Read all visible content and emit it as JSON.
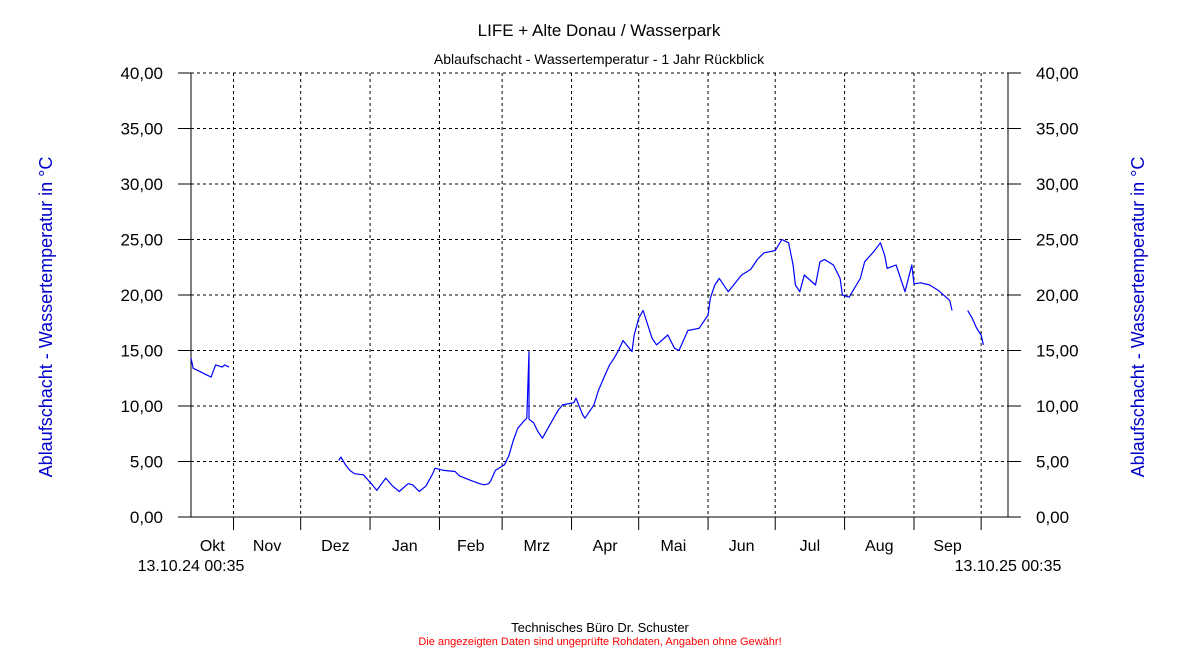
{
  "chart_data": {
    "type": "line",
    "title": "LIFE + Alte Donau / Wasserpark",
    "subtitle": "Ablaufschacht - Wassertemperatur - 1 Jahr Rückblick",
    "ylabel": "Ablaufschacht - Wassertemperatur in °C",
    "ylabel_right": "Ablaufschacht - Wassertemperatur in °C",
    "ylim": [
      0,
      40
    ],
    "yticks": [
      "0,00",
      "5,00",
      "10,00",
      "15,00",
      "20,00",
      "25,00",
      "30,00",
      "35,00",
      "40,00"
    ],
    "xlim": [
      "2024-10-13",
      "2025-10-13"
    ],
    "x_start_label": "13.10.24 00:35",
    "x_end_label": "13.10.25 00:35",
    "month_labels": [
      "Okt",
      "Nov",
      "Dez",
      "Jan",
      "Feb",
      "Mrz",
      "Apr",
      "Mai",
      "Jun",
      "Jul",
      "Aug",
      "Sep"
    ],
    "month_boundaries": [
      "2024-11-01",
      "2024-12-01",
      "2025-01-01",
      "2025-02-01",
      "2025-03-01",
      "2025-04-01",
      "2025-05-01",
      "2025-06-01",
      "2025-07-01",
      "2025-08-01",
      "2025-09-01",
      "2025-10-01"
    ],
    "grid": true,
    "line_color": "#0000ff",
    "axis_label_color": "#0000cc",
    "segments": [
      [
        [
          "2024-10-13",
          14.3
        ],
        [
          "2024-10-14",
          13.4
        ],
        [
          "2024-10-17",
          13.1
        ],
        [
          "2024-10-19",
          12.9
        ],
        [
          "2024-10-22",
          12.6
        ],
        [
          "2024-10-24",
          13.7
        ],
        [
          "2024-10-27",
          13.5
        ],
        [
          "2024-10-28",
          13.7
        ],
        [
          "2024-10-30",
          13.5
        ]
      ],
      [
        [
          "2024-12-18",
          5.1
        ],
        [
          "2024-12-19",
          5.4
        ],
        [
          "2024-12-21",
          4.7
        ],
        [
          "2024-12-23",
          4.2
        ],
        [
          "2024-12-25",
          3.9
        ],
        [
          "2024-12-29",
          3.8
        ],
        [
          "2025-01-02",
          2.9
        ],
        [
          "2025-01-04",
          2.4
        ],
        [
          "2025-01-08",
          3.5
        ],
        [
          "2025-01-11",
          2.8
        ],
        [
          "2025-01-14",
          2.3
        ],
        [
          "2025-01-18",
          3.0
        ],
        [
          "2025-01-20",
          2.9
        ],
        [
          "2025-01-23",
          2.3
        ],
        [
          "2025-01-26",
          2.8
        ],
        [
          "2025-01-29",
          3.9
        ],
        [
          "2025-01-30",
          4.4
        ],
        [
          "2025-02-03",
          4.2
        ],
        [
          "2025-02-08",
          4.1
        ],
        [
          "2025-02-10",
          3.7
        ],
        [
          "2025-02-15",
          3.3
        ],
        [
          "2025-02-19",
          3.0
        ],
        [
          "2025-02-21",
          2.9
        ],
        [
          "2025-02-23",
          3.0
        ],
        [
          "2025-02-24",
          3.3
        ],
        [
          "2025-02-26",
          4.2
        ],
        [
          "2025-03-02",
          4.7
        ],
        [
          "2025-03-04",
          5.5
        ],
        [
          "2025-03-06",
          6.9
        ],
        [
          "2025-03-08",
          8.0
        ],
        [
          "2025-03-11",
          8.7
        ],
        [
          "2025-03-12",
          8.9
        ],
        [
          "2025-03-13",
          14.9
        ],
        [
          "2025-03-13",
          8.8
        ],
        [
          "2025-03-15",
          8.5
        ],
        [
          "2025-03-17",
          7.7
        ],
        [
          "2025-03-19",
          7.1
        ],
        [
          "2025-03-24",
          8.9
        ],
        [
          "2025-03-26",
          9.6
        ],
        [
          "2025-03-28",
          10.1
        ],
        [
          "2025-04-02",
          10.3
        ],
        [
          "2025-04-03",
          10.7
        ],
        [
          "2025-04-06",
          9.2
        ],
        [
          "2025-04-07",
          8.9
        ],
        [
          "2025-04-11",
          10.1
        ],
        [
          "2025-04-13",
          11.4
        ],
        [
          "2025-04-16",
          12.8
        ],
        [
          "2025-04-18",
          13.7
        ],
        [
          "2025-04-20",
          14.3
        ],
        [
          "2025-04-22",
          15.0
        ],
        [
          "2025-04-24",
          15.9
        ],
        [
          "2025-04-28",
          14.9
        ],
        [
          "2025-04-29",
          16.4
        ],
        [
          "2025-05-01",
          17.9
        ],
        [
          "2025-05-03",
          18.6
        ],
        [
          "2025-05-07",
          16.1
        ],
        [
          "2025-05-09",
          15.5
        ],
        [
          "2025-05-14",
          16.4
        ],
        [
          "2025-05-17",
          15.2
        ],
        [
          "2025-05-19",
          15.0
        ],
        [
          "2025-05-23",
          16.8
        ],
        [
          "2025-05-28",
          17.0
        ],
        [
          "2025-06-01",
          18.2
        ],
        [
          "2025-06-02",
          19.7
        ],
        [
          "2025-06-04",
          20.9
        ],
        [
          "2025-06-06",
          21.5
        ],
        [
          "2025-06-10",
          20.3
        ],
        [
          "2025-06-16",
          21.8
        ],
        [
          "2025-06-20",
          22.3
        ],
        [
          "2025-06-23",
          23.2
        ],
        [
          "2025-06-26",
          23.8
        ],
        [
          "2025-07-01",
          24.0
        ],
        [
          "2025-07-04",
          25.0
        ],
        [
          "2025-07-07",
          24.7
        ],
        [
          "2025-07-09",
          22.7
        ],
        [
          "2025-07-10",
          20.9
        ],
        [
          "2025-07-12",
          20.3
        ],
        [
          "2025-07-14",
          21.8
        ],
        [
          "2025-07-19",
          20.9
        ],
        [
          "2025-07-21",
          23.0
        ],
        [
          "2025-07-23",
          23.2
        ],
        [
          "2025-07-27",
          22.7
        ],
        [
          "2025-07-30",
          21.5
        ],
        [
          "2025-07-31",
          20.0
        ],
        [
          "2025-08-03",
          19.8
        ],
        [
          "2025-08-08",
          21.5
        ],
        [
          "2025-08-10",
          23.0
        ],
        [
          "2025-08-14",
          23.9
        ],
        [
          "2025-08-17",
          24.7
        ],
        [
          "2025-08-19",
          23.5
        ],
        [
          "2025-08-20",
          22.4
        ],
        [
          "2025-08-24",
          22.7
        ],
        [
          "2025-08-26",
          21.5
        ],
        [
          "2025-08-28",
          20.3
        ],
        [
          "2025-08-31",
          22.7
        ],
        [
          "2025-09-01",
          21.0
        ],
        [
          "2025-09-04",
          21.1
        ],
        [
          "2025-09-08",
          20.9
        ],
        [
          "2025-09-12",
          20.4
        ],
        [
          "2025-09-17",
          19.5
        ],
        [
          "2025-09-18",
          18.6
        ]
      ],
      [
        [
          "2025-09-25",
          18.6
        ],
        [
          "2025-09-27",
          17.9
        ],
        [
          "2025-09-29",
          17.0
        ],
        [
          "2025-10-01",
          16.4
        ],
        [
          "2025-10-02",
          15.5
        ]
      ]
    ]
  },
  "footer": {
    "company": "Technisches Büro Dr. Schuster",
    "disclaimer": "Die angezeigten Daten sind ungeprüfte Rohdaten, Angaben ohne Gewähr!"
  }
}
